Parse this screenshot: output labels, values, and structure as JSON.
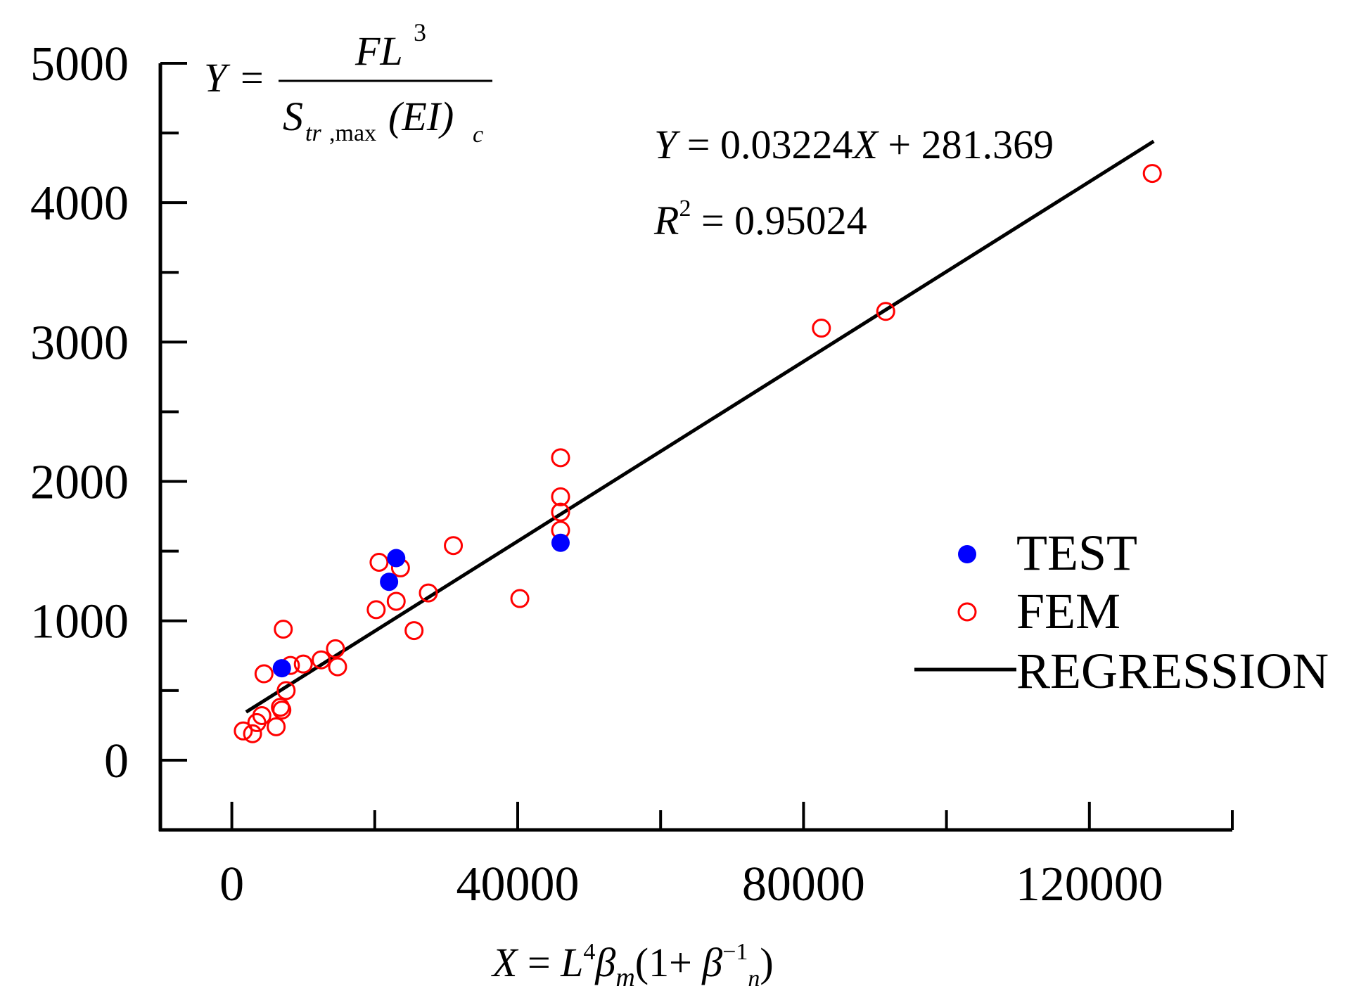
{
  "chart_data": {
    "type": "scatter",
    "title": "",
    "xlabel": "X = L⁴βm(1+βn⁻¹)",
    "ylabel": "Y = FL³ / (Str,max (EI)c)",
    "xlim": [
      -10000,
      140000
    ],
    "ylim": [
      -500,
      5000
    ],
    "x_ticks": [
      0,
      40000,
      80000,
      120000
    ],
    "x_tick_labels": [
      "0",
      "40000",
      "80000",
      "120000"
    ],
    "y_ticks": [
      0,
      1000,
      2000,
      3000,
      4000,
      5000
    ],
    "y_tick_labels": [
      "0",
      "1000",
      "2000",
      "3000",
      "4000",
      "5000"
    ],
    "legend_position": "right",
    "series": [
      {
        "name": "TEST",
        "marker": "filled-circle",
        "color": "#0000ff",
        "points": [
          [
            7000,
            660
          ],
          [
            22000,
            1280
          ],
          [
            23000,
            1450
          ],
          [
            46000,
            1560
          ]
        ]
      },
      {
        "name": "FEM",
        "marker": "open-circle",
        "color": "#ff0000",
        "points": [
          [
            1600,
            210
          ],
          [
            2900,
            190
          ],
          [
            3500,
            270
          ],
          [
            4200,
            320
          ],
          [
            4500,
            620
          ],
          [
            6200,
            240
          ],
          [
            6800,
            380
          ],
          [
            7000,
            360
          ],
          [
            7200,
            940
          ],
          [
            7600,
            500
          ],
          [
            8200,
            680
          ],
          [
            10000,
            690
          ],
          [
            12500,
            720
          ],
          [
            14500,
            800
          ],
          [
            14800,
            670
          ],
          [
            20200,
            1080
          ],
          [
            20600,
            1420
          ],
          [
            23000,
            1140
          ],
          [
            23600,
            1380
          ],
          [
            25500,
            930
          ],
          [
            27500,
            1200
          ],
          [
            31000,
            1540
          ],
          [
            40300,
            1160
          ],
          [
            46000,
            1650
          ],
          [
            46000,
            1780
          ],
          [
            46000,
            1890
          ],
          [
            46000,
            2170
          ],
          [
            82500,
            3100
          ],
          [
            91500,
            3220
          ],
          [
            128800,
            4210
          ]
        ]
      },
      {
        "name": "REGRESSION",
        "type": "line",
        "color": "#000000",
        "x": [
          2000,
          129000
        ],
        "y": [
          345.85,
          4440.33
        ]
      }
    ],
    "annotations": {
      "formula_lhs": "Y",
      "formula_eq": "=",
      "formula_num_base": "FL",
      "formula_num_exp": "3",
      "formula_den_s": "S",
      "formula_den_sub": "tr",
      "formula_den_sub2": ",max",
      "formula_den_ei": "(EI)",
      "formula_den_c": "c",
      "regression_equation": "Y = 0.03224X + 281.369",
      "regression_y": "Y",
      "regression_mid": " = 0.03224",
      "regression_x": "X",
      "regression_tail": " + 281.369",
      "r2_r": "R",
      "r2_exp": "2",
      "r2_value": " = 0.95024",
      "xlabel_x": "X",
      "xlabel_eq": " = ",
      "xlabel_l": "L",
      "xlabel_l_exp": "4",
      "xlabel_beta": "β",
      "xlabel_m": "m",
      "xlabel_paren": "(1+ ",
      "xlabel_beta2": "β",
      "xlabel_n": "n",
      "xlabel_exp": "−1",
      "xlabel_close": ")"
    },
    "regression": {
      "slope": 0.03224,
      "intercept": 281.369,
      "r2": 0.95024
    }
  }
}
